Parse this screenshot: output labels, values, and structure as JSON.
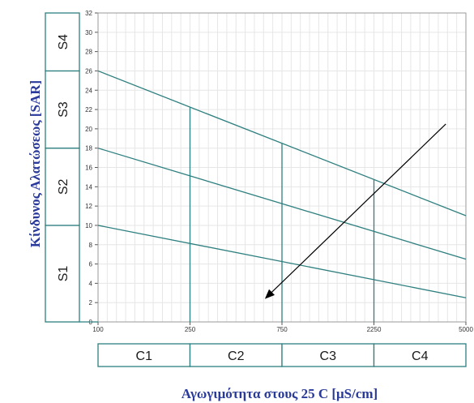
{
  "chart_data": {
    "type": "line",
    "xlabel": "Αγωγιμότητα στους 25 C [μS/cm]",
    "ylabel": "Κίνδυνος Αλατώσεως [SAR]",
    "x_ticks": [
      "100",
      "250",
      "750",
      "2250",
      "5000"
    ],
    "x_scale": "log",
    "ylim": [
      0,
      32
    ],
    "y_ticks": [
      0,
      2,
      4,
      6,
      8,
      10,
      12,
      14,
      16,
      18,
      20,
      22,
      24,
      26,
      28,
      30,
      32
    ],
    "grid": true,
    "series": [
      {
        "x": [
          100,
          5000
        ],
        "values": [
          26,
          11
        ]
      },
      {
        "x": [
          100,
          5000
        ],
        "values": [
          18,
          6.5
        ]
      },
      {
        "x": [
          100,
          5000
        ],
        "values": [
          10,
          2.5
        ]
      }
    ],
    "vertical_lines_x": [
      250,
      750,
      2250
    ],
    "s_bands": [
      {
        "label": "S1",
        "range": [
          0,
          10
        ]
      },
      {
        "label": "S2",
        "range": [
          10,
          18
        ]
      },
      {
        "label": "S3",
        "range": [
          18,
          26
        ]
      },
      {
        "label": "S4",
        "range": [
          26,
          32
        ]
      }
    ],
    "c_bands": [
      {
        "label": "C1",
        "range": [
          100,
          250
        ]
      },
      {
        "label": "C2",
        "range": [
          250,
          750
        ]
      },
      {
        "label": "C3",
        "range": [
          750,
          2250
        ]
      },
      {
        "label": "C4",
        "range": [
          2250,
          5000
        ]
      }
    ],
    "annotation_arrow": {
      "from": [
        4200,
        20.5
      ],
      "to": [
        620,
        2.5
      ]
    },
    "colors": {
      "lines": "#2e7f7f",
      "grid": "#e6e6e6",
      "arrow": "#000000",
      "title": "#2a3a9a"
    }
  }
}
